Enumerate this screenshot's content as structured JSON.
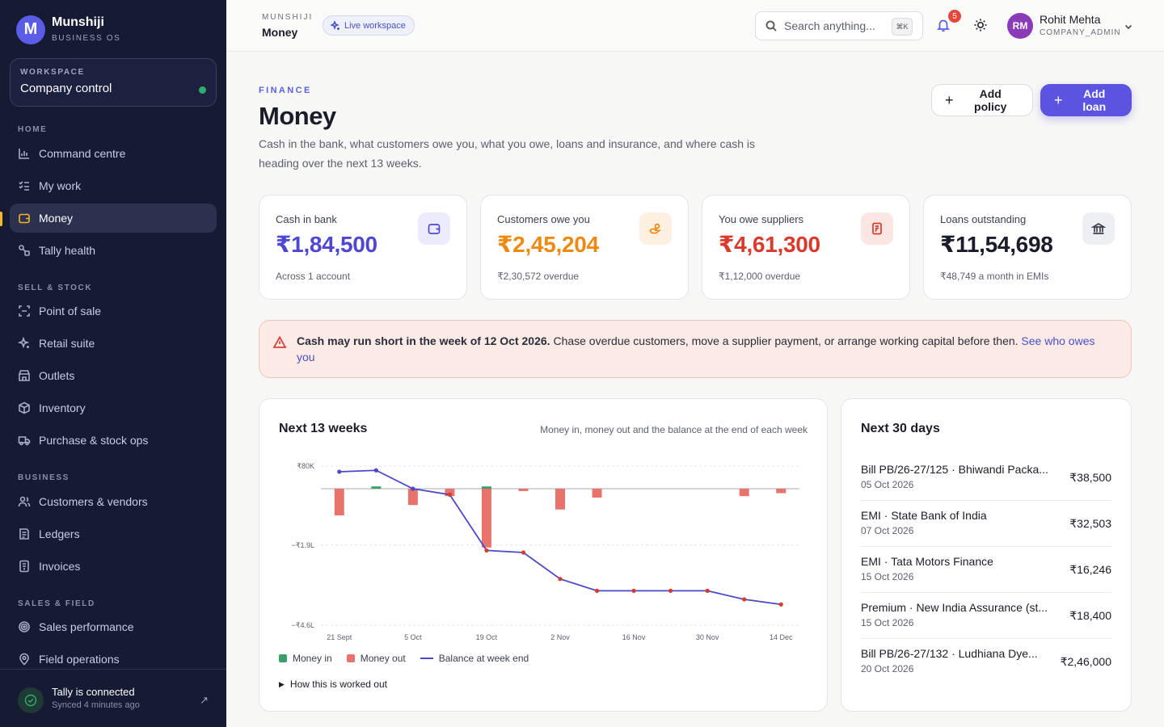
{
  "brand": {
    "name": "Munshiji",
    "sub": "BUSINESS OS",
    "logo_letter": "M"
  },
  "workspace": {
    "label": "WORKSPACE",
    "name": "Company control"
  },
  "nav": {
    "sections": [
      "HOME",
      "SELL & STOCK",
      "BUSINESS",
      "SALES & FIELD"
    ],
    "items": [
      {
        "label": "Command centre",
        "icon": "bar-chart-icon"
      },
      {
        "label": "My work",
        "icon": "checklist-icon"
      },
      {
        "label": "Money",
        "icon": "wallet-icon"
      },
      {
        "label": "Tally health",
        "icon": "link-icon"
      },
      {
        "label": "Point of sale",
        "icon": "scan-icon"
      },
      {
        "label": "Retail suite",
        "icon": "sparkle-icon"
      },
      {
        "label": "Outlets",
        "icon": "store-icon"
      },
      {
        "label": "Inventory",
        "icon": "box-icon"
      },
      {
        "label": "Purchase & stock ops",
        "icon": "truck-icon"
      },
      {
        "label": "Customers & vendors",
        "icon": "users-icon"
      },
      {
        "label": "Ledgers",
        "icon": "book-icon"
      },
      {
        "label": "Invoices",
        "icon": "invoice-icon"
      },
      {
        "label": "Sales performance",
        "icon": "target-icon"
      },
      {
        "label": "Field operations",
        "icon": "pin-icon"
      }
    ]
  },
  "tally": {
    "title": "Tally is connected",
    "sub": "Synced 4 minutes ago"
  },
  "topbar": {
    "crumb_sub": "MUNSHIJI",
    "crumb_title": "Money",
    "live": "Live workspace",
    "search_placeholder": "Search anything...",
    "kbd": "⌘K",
    "notifications": "5",
    "user_initials": "RM",
    "user_name": "Rohit Mehta",
    "user_role": "COMPANY_ADMIN"
  },
  "header": {
    "eyebrow": "FINANCE",
    "title": "Money",
    "description": "Cash in the bank, what customers owe you, what you owe, loans and insurance, and where cash is heading over the next 13 weeks.",
    "add_policy": "Add policy",
    "add_loan": "Add loan"
  },
  "stats": [
    {
      "label": "Cash in bank",
      "value": "₹1,84,500",
      "sub": "Across 1 account",
      "color": "#4f47d1",
      "icon": "wallet-icon"
    },
    {
      "label": "Customers owe you",
      "value": "₹2,45,204",
      "sub": "₹2,30,572 overdue",
      "color": "#ee8a12",
      "icon": "hand-coins-icon"
    },
    {
      "label": "You owe suppliers",
      "value": "₹4,61,300",
      "sub": "₹1,12,000 overdue",
      "color": "#d93a2c",
      "icon": "receipt-icon"
    },
    {
      "label": "Loans outstanding",
      "value": "₹11,54,698",
      "sub": "₹48,749 a month in EMIs",
      "color": "#1a1d29",
      "icon": "bank-icon"
    }
  ],
  "alert": {
    "bold": "Cash may run short in the week of 12 Oct 2026.",
    "text": " Chase overdue customers, move a supplier payment, or arrange working capital before then. ",
    "link": "See who owes you"
  },
  "forecast": {
    "title": "Next 13 weeks",
    "note": "Money in, money out and the balance at the end of each week",
    "legend_in": "Money in",
    "legend_out": "Money out",
    "legend_balance": "Balance at week end",
    "details": "How this is worked out"
  },
  "chart_data": {
    "type": "bar",
    "y_tick_labels": [
      "₹80K",
      "−₹1.9L",
      "−₹4.6L"
    ],
    "x_tick_labels": [
      "21 Sept",
      "5 Oct",
      "19 Oct",
      "2 Nov",
      "16 Nov",
      "30 Nov",
      "14 Dec"
    ],
    "ylim": [
      -460000,
      80000
    ],
    "weeks": 13,
    "series": [
      {
        "name": "Money in",
        "values": [
          0,
          8000,
          0,
          0,
          8000,
          0,
          0,
          0,
          0,
          0,
          0,
          0,
          0
        ]
      },
      {
        "name": "Money out",
        "values": [
          -90000,
          0,
          -55000,
          -25000,
          -198000,
          -8000,
          -70000,
          -30000,
          0,
          0,
          0,
          -25000,
          -15000
        ]
      },
      {
        "name": "Balance at week end",
        "values": [
          60000,
          65000,
          0,
          -20000,
          -208000,
          -215000,
          -304000,
          -344000,
          -344000,
          -344000,
          -344000,
          -373000,
          -390000
        ]
      }
    ],
    "colors": {
      "in": "#3a9f6a",
      "out": "#e8736b",
      "balance": "#4a49c8",
      "negative_point": "#d93a2c"
    }
  },
  "upcoming": {
    "title": "Next 30 days",
    "items": [
      {
        "name": "Bill PB/26-27/125 · Bhiwandi Packa...",
        "date": "05 Oct 2026",
        "amount": "₹38,500"
      },
      {
        "name": "EMI · State Bank of India",
        "date": "07 Oct 2026",
        "amount": "₹32,503"
      },
      {
        "name": "EMI · Tata Motors Finance",
        "date": "15 Oct 2026",
        "amount": "₹16,246"
      },
      {
        "name": "Premium · New India Assurance (st...",
        "date": "15 Oct 2026",
        "amount": "₹18,400"
      },
      {
        "name": "Bill PB/26-27/132 · Ludhiana Dye...",
        "date": "20 Oct 2026",
        "amount": "₹2,46,000"
      }
    ]
  }
}
